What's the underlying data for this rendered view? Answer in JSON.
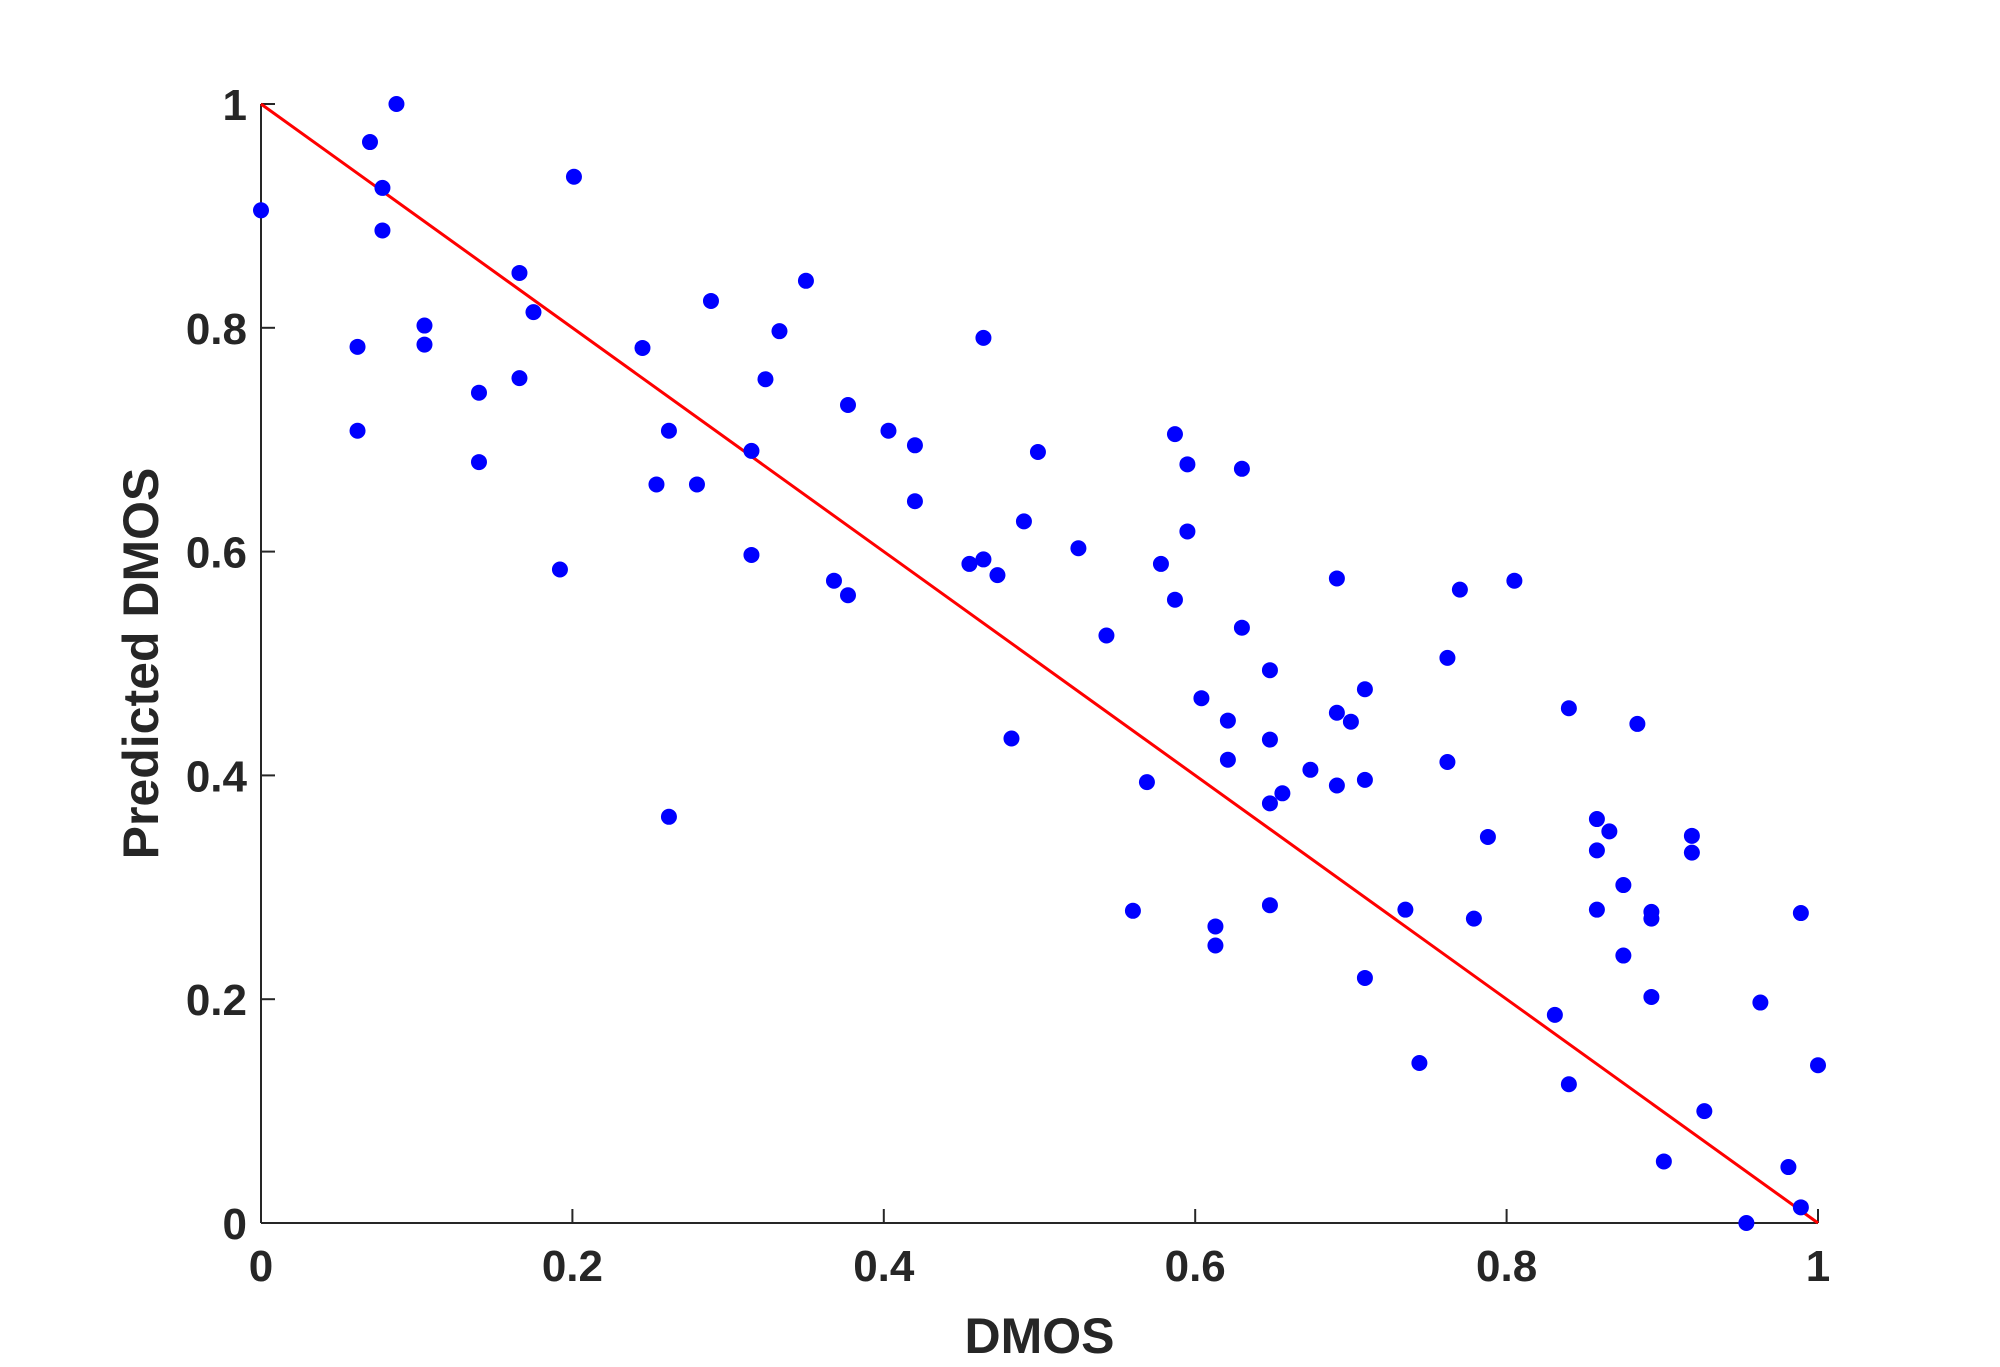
{
  "chart_data": {
    "type": "scatter",
    "title": "",
    "xlabel": "DMOS",
    "ylabel": "Predicted DMOS",
    "xlim": [
      0,
      1
    ],
    "ylim": [
      0,
      1
    ],
    "xticks": [
      "0",
      "0.2",
      "0.4",
      "0.6",
      "0.8",
      "1"
    ],
    "yticks": [
      "0",
      "0.2",
      "0.4",
      "0.6",
      "0.8",
      "1"
    ],
    "grid": false,
    "legend": "none",
    "colors": {
      "points": "#0000ff",
      "reference_line": "#ff0000",
      "axes": "#262626"
    },
    "reference_line": {
      "x": [
        0,
        1
      ],
      "y": [
        1,
        0
      ]
    },
    "series": [
      {
        "x": [
          0.0,
          0.062,
          0.062,
          0.07,
          0.078,
          0.078,
          0.087,
          0.105,
          0.105,
          0.14,
          0.14,
          0.166,
          0.166,
          0.175,
          0.192,
          0.201,
          0.245,
          0.254,
          0.262,
          0.262,
          0.28,
          0.289,
          0.315,
          0.315,
          0.324,
          0.333,
          0.35,
          0.368,
          0.377,
          0.377,
          0.403,
          0.42,
          0.42,
          0.455,
          0.464,
          0.464,
          0.473,
          0.482,
          0.49,
          0.499,
          0.525,
          0.543,
          0.56,
          0.569,
          0.578,
          0.587,
          0.587,
          0.595,
          0.595,
          0.604,
          0.613,
          0.613,
          0.621,
          0.621,
          0.63,
          0.63,
          0.648,
          0.648,
          0.648,
          0.648,
          0.656,
          0.674,
          0.691,
          0.691,
          0.691,
          0.7,
          0.709,
          0.709,
          0.709,
          0.735,
          0.744,
          0.762,
          0.762,
          0.77,
          0.779,
          0.788,
          0.805,
          0.831,
          0.84,
          0.84,
          0.858,
          0.858,
          0.858,
          0.866,
          0.875,
          0.875,
          0.884,
          0.893,
          0.893,
          0.893,
          0.901,
          0.927,
          0.919,
          0.919,
          0.954,
          0.963,
          0.981,
          0.989,
          0.989,
          1.0
        ],
        "y": [
          0.905,
          0.783,
          0.708,
          0.966,
          0.925,
          0.887,
          1.0,
          0.802,
          0.785,
          0.742,
          0.68,
          0.849,
          0.755,
          0.814,
          0.584,
          0.935,
          0.782,
          0.66,
          0.708,
          0.363,
          0.66,
          0.824,
          0.69,
          0.597,
          0.754,
          0.797,
          0.842,
          0.574,
          0.561,
          0.731,
          0.708,
          0.695,
          0.645,
          0.589,
          0.593,
          0.791,
          0.579,
          0.433,
          0.627,
          0.689,
          0.603,
          0.525,
          0.279,
          0.394,
          0.589,
          0.705,
          0.557,
          0.678,
          0.618,
          0.469,
          0.265,
          0.248,
          0.449,
          0.414,
          0.674,
          0.532,
          0.494,
          0.432,
          0.375,
          0.284,
          0.384,
          0.405,
          0.576,
          0.456,
          0.391,
          0.448,
          0.477,
          0.396,
          0.219,
          0.28,
          0.143,
          0.505,
          0.412,
          0.566,
          0.272,
          0.345,
          0.574,
          0.186,
          0.46,
          0.124,
          0.361,
          0.333,
          0.28,
          0.35,
          0.302,
          0.239,
          0.446,
          0.278,
          0.272,
          0.202,
          0.055,
          0.1,
          0.346,
          0.331,
          0.0,
          0.197,
          0.05,
          0.277,
          0.014,
          0.141
        ]
      }
    ]
  }
}
